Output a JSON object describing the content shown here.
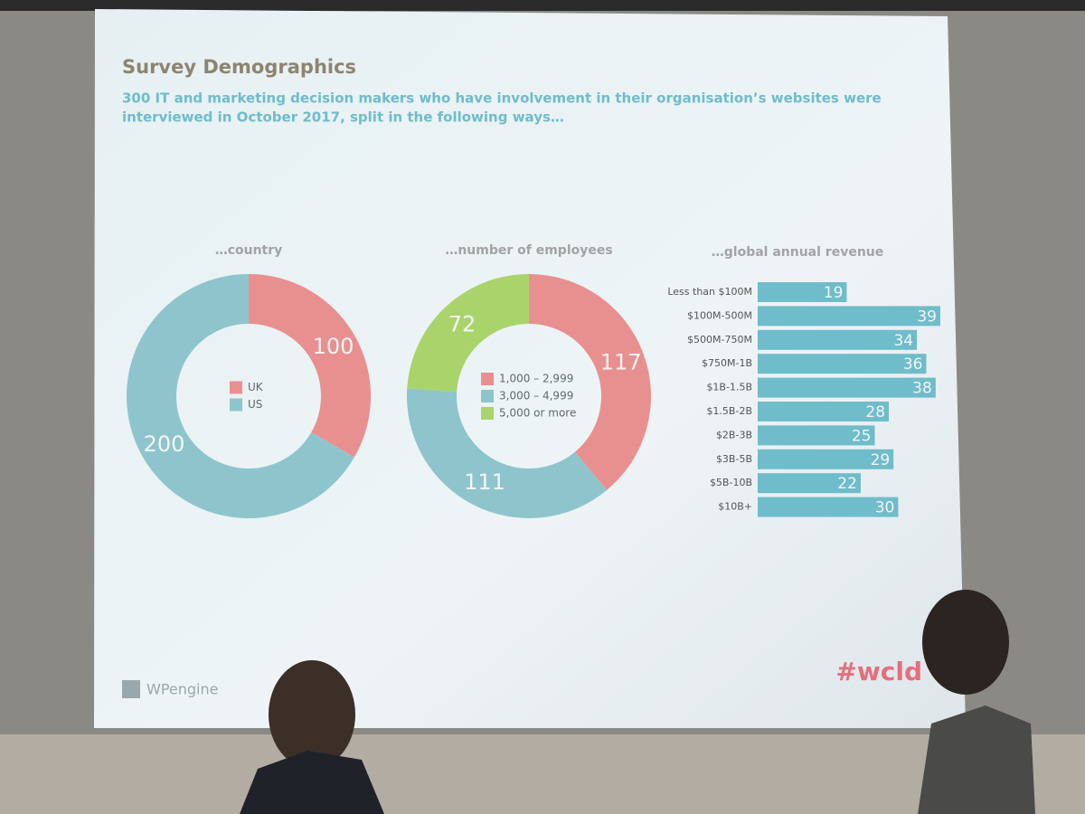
{
  "title": "Survey Demographics",
  "subtitle": [
    "300 IT and marketing decision makers who have involvement in their organisation’s websites were",
    "interviewed in October 2017, split in the following ways…"
  ],
  "footer": {
    "logo": "WPengine",
    "hashtag": "#wcld"
  },
  "chart_data": [
    {
      "type": "donut",
      "title": "…country",
      "categories": [
        "UK",
        "US"
      ],
      "values": [
        100,
        200
      ],
      "colors": [
        "#e8908f",
        "#8ec5cc"
      ]
    },
    {
      "type": "donut",
      "title": "…number of employees",
      "categories": [
        "1,000 – 2,999",
        "3,000 – 4,999",
        "5,000 or more"
      ],
      "values": [
        117,
        111,
        72
      ],
      "colors": [
        "#e8908f",
        "#8ec5cc",
        "#a9d46c"
      ]
    },
    {
      "type": "hbar",
      "title": "…global annual revenue",
      "categories": [
        "Less than $100M",
        "$100M-500M",
        "$500M-750M",
        "$750M-1B",
        "$1B-1.5B",
        "$1.5B-2B",
        "$2B-3B",
        "$3B-5B",
        "$5B-10B",
        "$10B+"
      ],
      "values": [
        19,
        39,
        34,
        36,
        38,
        28,
        25,
        29,
        22,
        30
      ],
      "color": "#6fbccb"
    }
  ]
}
